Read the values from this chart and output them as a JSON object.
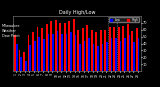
{
  "title": "Milwaukee Weather Dew Point",
  "subtitle": "Daily High/Low",
  "background_color": "#000000",
  "plot_bg_color": "#000000",
  "bar_width": 0.4,
  "ylim": [
    0,
    80
  ],
  "yticks": [
    10,
    20,
    30,
    40,
    50,
    60,
    70
  ],
  "high_color": "#ff0000",
  "low_color": "#0000ff",
  "days": [
    "1",
    "2",
    "3",
    "4",
    "5",
    "6",
    "7",
    "8",
    "9",
    "10",
    "11",
    "12",
    "13",
    "14",
    "15",
    "16",
    "17",
    "18",
    "19",
    "20",
    "21",
    "22",
    "23",
    "24",
    "25",
    "26",
    "27",
    "28"
  ],
  "highs": [
    52,
    30,
    28,
    52,
    57,
    64,
    62,
    68,
    72,
    74,
    70,
    70,
    72,
    75,
    60,
    62,
    66,
    60,
    56,
    60,
    60,
    63,
    63,
    63,
    65,
    68,
    58,
    62
  ],
  "lows": [
    40,
    20,
    15,
    38,
    44,
    50,
    47,
    54,
    54,
    58,
    53,
    53,
    56,
    52,
    40,
    43,
    48,
    40,
    36,
    40,
    42,
    48,
    48,
    43,
    48,
    52,
    42,
    48
  ],
  "vline_positions": [
    20.5,
    22.5
  ],
  "vline_color": "#aaaaaa",
  "title_color": "#ffffff",
  "tick_color": "#ffffff",
  "legend_high_label": "High",
  "legend_low_label": "Low"
}
